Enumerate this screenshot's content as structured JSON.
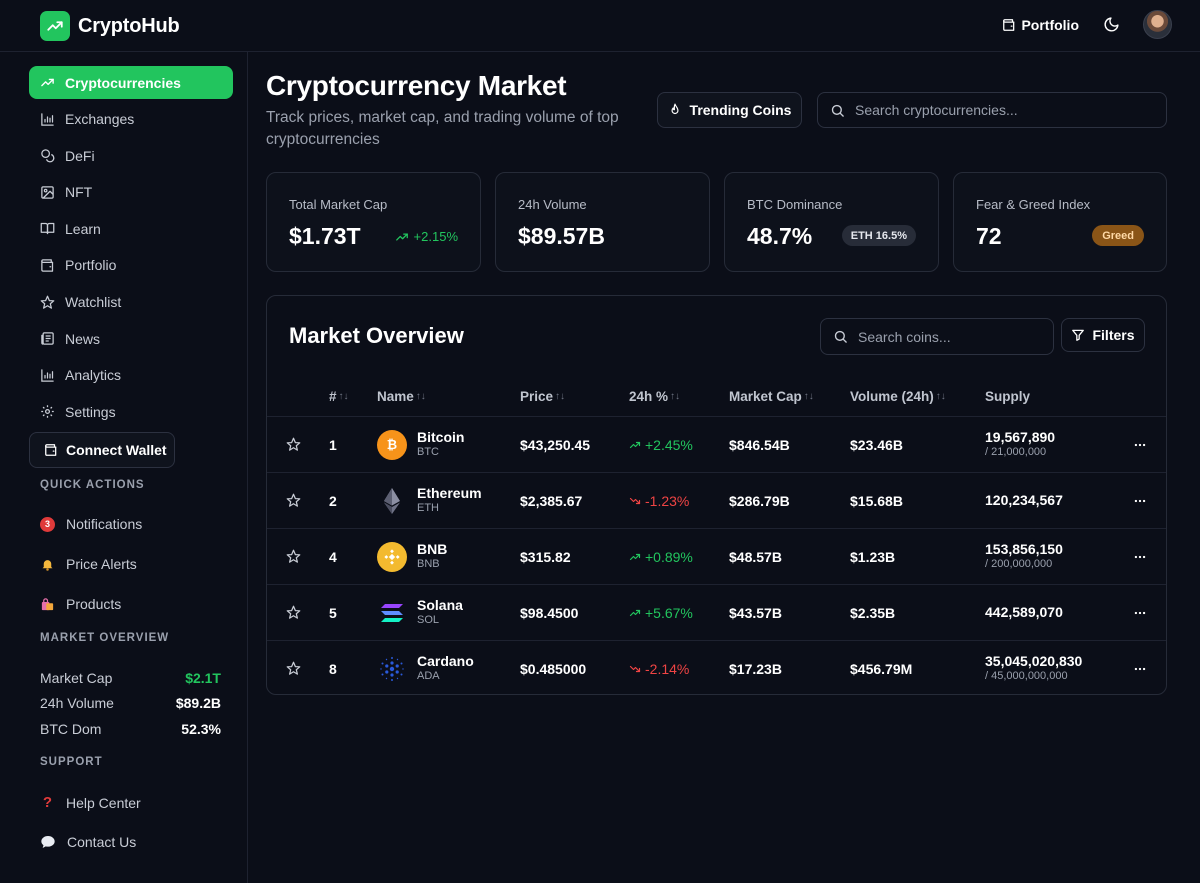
{
  "app": {
    "name": "CryptoHub"
  },
  "header": {
    "portfolio_label": "Portfolio"
  },
  "sidebar": {
    "items": [
      {
        "label": "Cryptocurrencies",
        "icon": "trending-up-icon",
        "active": true
      },
      {
        "label": "Exchanges",
        "icon": "bar-chart-icon"
      },
      {
        "label": "DeFi",
        "icon": "coins-icon"
      },
      {
        "label": "NFT",
        "icon": "image-icon"
      },
      {
        "label": "Learn",
        "icon": "book-icon"
      },
      {
        "label": "Portfolio",
        "icon": "wallet-icon"
      },
      {
        "label": "Watchlist",
        "icon": "star-icon"
      },
      {
        "label": "News",
        "icon": "newspaper-icon"
      },
      {
        "label": "Analytics",
        "icon": "bar-chart-icon"
      },
      {
        "label": "Settings",
        "icon": "gear-icon"
      }
    ],
    "connect_wallet_label": "Connect Wallet",
    "quick_actions": {
      "title": "QUICK ACTIONS",
      "notifications_label": "Notifications",
      "notifications_count": "3",
      "price_alerts_label": "Price Alerts",
      "products_label": "Products"
    },
    "market_overview": {
      "title": "MARKET OVERVIEW",
      "rows": [
        {
          "label": "Market Cap",
          "value": "$2.1T"
        },
        {
          "label": "24h Volume",
          "value": "$89.2B"
        },
        {
          "label": "BTC Dom",
          "value": "52.3%"
        }
      ]
    },
    "support": {
      "title": "SUPPORT",
      "help_label": "Help Center",
      "contact_label": "Contact Us"
    }
  },
  "main": {
    "title": "Cryptocurrency Market",
    "subtitle": "Track prices, market cap, and trading volume of top cryptocurrencies",
    "trending_label": "Trending Coins",
    "search_placeholder": "Search cryptocurrencies...",
    "stats": {
      "market_cap": {
        "label": "Total Market Cap",
        "value": "$1.73T",
        "change": "+2.15%"
      },
      "volume": {
        "label": "24h Volume",
        "value": "$89.57B"
      },
      "btc_dominance": {
        "label": "BTC Dominance",
        "value": "48.7%",
        "badge": "ETH 16.5%"
      },
      "fear_greed": {
        "label": "Fear & Greed Index",
        "value": "72",
        "badge": "Greed"
      }
    },
    "market": {
      "title": "Market Overview",
      "search_placeholder": "Search coins...",
      "filters_label": "Filters",
      "columns": {
        "rank": "#",
        "name": "Name",
        "price": "Price",
        "change": "24h %",
        "market_cap": "Market Cap",
        "volume": "Volume (24h)",
        "supply": "Supply"
      },
      "rows": [
        {
          "rank": "1",
          "name": "Bitcoin",
          "symbol": "BTC",
          "price": "$43,250.45",
          "change": "+2.45%",
          "direction": "up",
          "market_cap": "$846.54B",
          "volume": "$23.46B",
          "supply": "19,567,890",
          "max_supply": "/ 21,000,000",
          "color": "#f7931a"
        },
        {
          "rank": "2",
          "name": "Ethereum",
          "symbol": "ETH",
          "price": "$2,385.67",
          "change": "-1.23%",
          "direction": "down",
          "market_cap": "$286.79B",
          "volume": "$15.68B",
          "supply": "120,234,567",
          "max_supply": "",
          "color": "#8c8fa3"
        },
        {
          "rank": "4",
          "name": "BNB",
          "symbol": "BNB",
          "price": "$315.82",
          "change": "+0.89%",
          "direction": "up",
          "market_cap": "$48.57B",
          "volume": "$1.23B",
          "supply": "153,856,150",
          "max_supply": "/ 200,000,000",
          "color": "#f3ba2f"
        },
        {
          "rank": "5",
          "name": "Solana",
          "symbol": "SOL",
          "price": "$98.4500",
          "change": "+5.67%",
          "direction": "up",
          "market_cap": "$43.57B",
          "volume": "$2.35B",
          "supply": "442,589,070",
          "max_supply": "",
          "color": "#9945ff"
        },
        {
          "rank": "8",
          "name": "Cardano",
          "symbol": "ADA",
          "price": "$0.485000",
          "change": "-2.14%",
          "direction": "down",
          "market_cap": "$17.23B",
          "volume": "$456.79M",
          "supply": "35,045,020,830",
          "max_supply": "/ 45,000,000,000",
          "color": "#2a5ada"
        }
      ]
    }
  },
  "colors": {
    "accent": "#22c55e",
    "negative": "#ef4444",
    "background": "#0b0e18"
  }
}
